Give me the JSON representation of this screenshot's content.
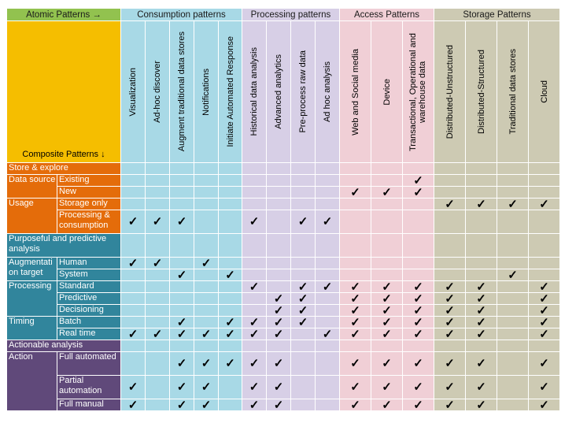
{
  "header": {
    "atomic": "Atomic Patterns →",
    "composite": "Composite Patterns ↓",
    "groups": [
      "Consumption patterns",
      "Processing patterns",
      "Access Patterns",
      "Storage Patterns"
    ]
  },
  "columns": [
    "Visualization",
    "Ad-hoc discover",
    "Augment traditional data stores",
    "Notifications",
    "Initiate Automated Response",
    "Historical data analysis",
    "Advanced analytics",
    "Pre-process raw data",
    "Ad hoc analysis",
    "Web and Social media",
    "Device",
    "Transactional, Operational and warehouse data",
    "Distributed-Unstructured",
    "Distributed-Structured",
    "Traditional data stores",
    "Cloud"
  ],
  "check_symbol": "✓",
  "rows": [
    {
      "section": "Store & explore",
      "style": "orange",
      "span": true,
      "cells": []
    },
    {
      "group": "Data source",
      "label": "Existing",
      "style": "orange",
      "cells": [
        0,
        0,
        0,
        0,
        0,
        0,
        0,
        0,
        0,
        0,
        0,
        1,
        0,
        0,
        0,
        0
      ]
    },
    {
      "group": "",
      "label": "New",
      "style": "orange",
      "cells": [
        0,
        0,
        0,
        0,
        0,
        0,
        0,
        0,
        0,
        1,
        1,
        1,
        0,
        0,
        0,
        0
      ]
    },
    {
      "group": "Usage",
      "label": "Storage only",
      "style": "orange",
      "cells": [
        0,
        0,
        0,
        0,
        0,
        0,
        0,
        0,
        0,
        0,
        0,
        0,
        1,
        1,
        1,
        1
      ]
    },
    {
      "group": "",
      "label": "Processing & consumption",
      "style": "orange",
      "tall": true,
      "cells": [
        1,
        1,
        1,
        0,
        0,
        1,
        0,
        1,
        1,
        0,
        0,
        0,
        0,
        0,
        0,
        0
      ]
    },
    {
      "section": "Purposeful and predictive analysis",
      "style": "teal",
      "span": true,
      "tall": true,
      "cells": []
    },
    {
      "group": "Augmentati on target",
      "label": "Human",
      "style": "teal",
      "cells": [
        1,
        1,
        0,
        1,
        0,
        0,
        0,
        0,
        0,
        0,
        0,
        0,
        0,
        0,
        0,
        0
      ]
    },
    {
      "group": "",
      "label": "System",
      "style": "teal",
      "cells": [
        0,
        0,
        1,
        0,
        1,
        0,
        0,
        0,
        0,
        0,
        0,
        0,
        0,
        0,
        1,
        0
      ]
    },
    {
      "group": "Processing",
      "label": "Standard",
      "style": "teal",
      "cells": [
        0,
        0,
        0,
        0,
        0,
        1,
        0,
        1,
        1,
        1,
        1,
        1,
        1,
        1,
        0,
        1
      ]
    },
    {
      "group": "",
      "label": "Predictive",
      "style": "teal",
      "cells": [
        0,
        0,
        0,
        0,
        0,
        0,
        1,
        1,
        0,
        1,
        1,
        1,
        1,
        1,
        0,
        1
      ]
    },
    {
      "group": "",
      "label": "Decisioning",
      "style": "teal",
      "cells": [
        0,
        0,
        0,
        0,
        0,
        0,
        1,
        1,
        0,
        1,
        1,
        1,
        1,
        1,
        0,
        1
      ]
    },
    {
      "group": "Timing",
      "label": "Batch",
      "style": "teal",
      "cells": [
        0,
        0,
        1,
        0,
        1,
        1,
        1,
        1,
        0,
        1,
        1,
        1,
        1,
        1,
        0,
        1
      ]
    },
    {
      "group": "",
      "label": "Real time",
      "style": "teal",
      "cells": [
        1,
        1,
        1,
        1,
        1,
        1,
        1,
        0,
        1,
        1,
        1,
        1,
        1,
        1,
        0,
        1
      ]
    },
    {
      "section": "Actionable analysis",
      "style": "purple",
      "span": true,
      "cells": []
    },
    {
      "group": "Action",
      "label": "Full automated",
      "style": "purple",
      "tall": true,
      "cells": [
        0,
        0,
        1,
        1,
        1,
        1,
        1,
        0,
        0,
        1,
        1,
        1,
        1,
        1,
        0,
        1
      ]
    },
    {
      "group": "",
      "label": "Partial automation",
      "style": "purple",
      "tall": true,
      "cells": [
        1,
        0,
        1,
        1,
        0,
        1,
        1,
        0,
        0,
        1,
        1,
        1,
        1,
        1,
        0,
        1
      ]
    },
    {
      "group": "",
      "label": "Full manual",
      "style": "purple",
      "cells": [
        1,
        0,
        1,
        1,
        0,
        1,
        1,
        0,
        0,
        1,
        1,
        1,
        1,
        1,
        0,
        1
      ]
    }
  ]
}
